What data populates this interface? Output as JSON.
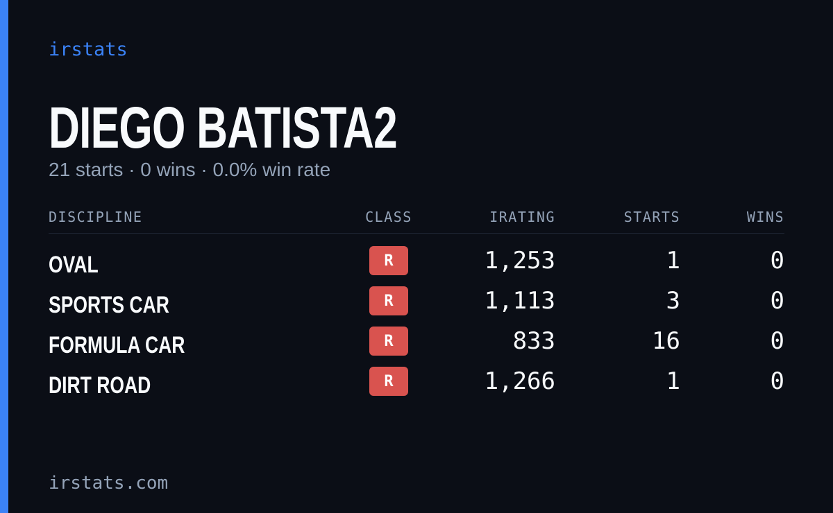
{
  "brand": "irstats",
  "header": {
    "title": "DIEGO BATISTA2",
    "subtitle": "21 starts · 0 wins · 0.0% win rate"
  },
  "table": {
    "columns": [
      "DISCIPLINE",
      "CLASS",
      "IRATING",
      "STARTS",
      "WINS"
    ],
    "rows": [
      [
        "OVAL",
        "R",
        "1,253",
        "1",
        "0"
      ],
      [
        "SPORTS CAR",
        "R",
        "1,113",
        "3",
        "0"
      ],
      [
        "FORMULA CAR",
        "R",
        "833",
        "16",
        "0"
      ],
      [
        "DIRT ROAD",
        "R",
        "1,266",
        "1",
        "0"
      ]
    ]
  },
  "footer": "irstats.com"
}
